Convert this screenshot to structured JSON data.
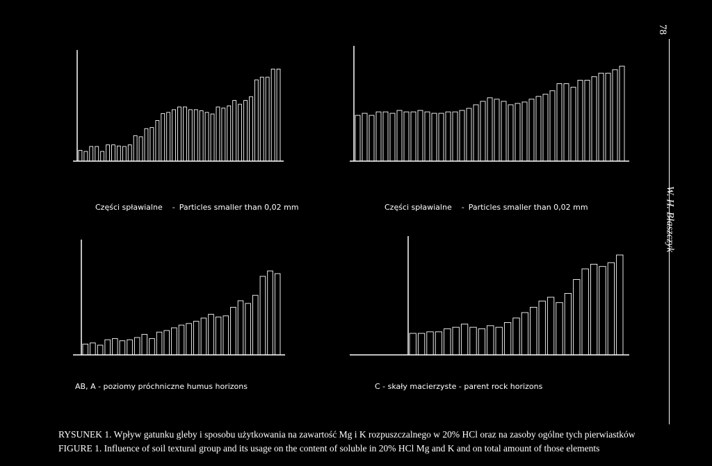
{
  "page_number": "78",
  "running_head": "W. H. Błaszczyk",
  "group_labels": {
    "left": "AB, A - poziomy próchniczne humus horizons",
    "right": "C - skały macierzyste - parent rock horizons"
  },
  "caption": {
    "pl": "RYSUNEK 1. Wpływ gatunku gleby i sposobu użytkowania na zawartość Mg i K rozpuszczalnego w 20% HCl  oraz na zasoby ogólne tych pierwiastków",
    "en": "FIGURE 1. Influence of soil textural group and its usage on the content of soluble in 20% HCl  Mg and K and on total amount of those elements"
  },
  "chart_data": [
    {
      "type": "bar",
      "title_pl": "Części spławialne",
      "title_en": "Particles smaller than 0,02 mm",
      "group": "AB, A horizons",
      "values": [
        20,
        18,
        27,
        27,
        18,
        30,
        30,
        28,
        27,
        30,
        47,
        45,
        60,
        62,
        75,
        88,
        90,
        95,
        100,
        100,
        95,
        95,
        93,
        90,
        87,
        100,
        98,
        102,
        112,
        105,
        112,
        119,
        150,
        155,
        155,
        170,
        170
      ],
      "ylim": [
        0,
        200
      ]
    },
    {
      "type": "bar",
      "title_pl": "Części spławialne",
      "title_en": "Particles smaller than 0,02 mm",
      "group": "C horizons",
      "values": [
        65,
        68,
        65,
        70,
        70,
        68,
        72,
        70,
        70,
        72,
        70,
        68,
        68,
        70,
        70,
        72,
        75,
        80,
        85,
        90,
        88,
        85,
        80,
        82,
        84,
        88,
        92,
        95,
        100,
        110,
        110,
        105,
        115,
        115,
        120,
        125,
        125,
        130,
        135
      ],
      "ylim": [
        0,
        150
      ]
    },
    {
      "type": "bar",
      "title_pl": "",
      "title_en": "",
      "group": "AB, A horizons",
      "values": [
        20,
        22,
        18,
        28,
        30,
        26,
        28,
        32,
        38,
        30,
        42,
        45,
        50,
        55,
        58,
        62,
        68,
        75,
        70,
        72,
        88,
        100,
        95,
        110,
        145,
        155,
        150
      ],
      "ylim": [
        0,
        200
      ]
    },
    {
      "type": "bar",
      "title_pl": "",
      "title_en": "",
      "group": "C horizons",
      "values": [
        28,
        28,
        30,
        30,
        34,
        36,
        40,
        36,
        34,
        38,
        36,
        42,
        48,
        55,
        62,
        70,
        75,
        68,
        80,
        98,
        112,
        118,
        115,
        120,
        130
      ],
      "ylim": [
        0,
        150
      ]
    }
  ]
}
